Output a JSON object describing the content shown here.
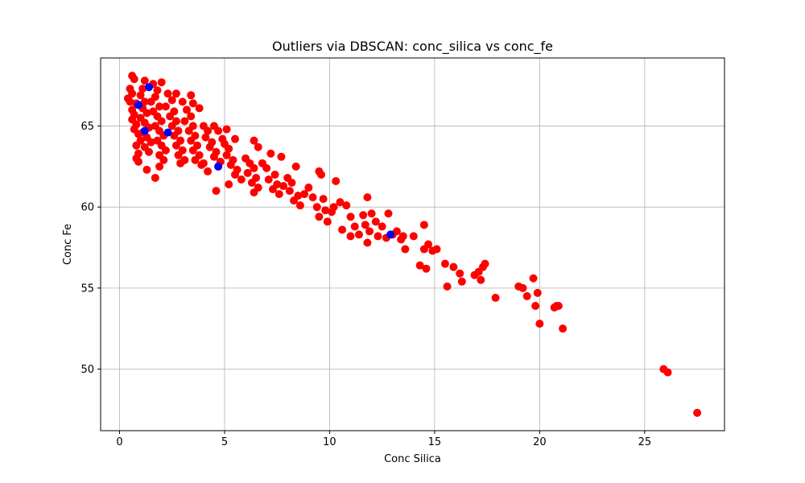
{
  "chart_data": {
    "type": "scatter",
    "title": "Outliers via DBSCAN: conc_silica vs conc_fe",
    "xlabel": "Conc Silica",
    "ylabel": "Conc Fe",
    "xlim": [
      -0.9,
      28.8
    ],
    "ylim": [
      46.2,
      69.2
    ],
    "xticks": [
      0,
      5,
      10,
      15,
      20,
      25
    ],
    "yticks": [
      50,
      55,
      60,
      65
    ],
    "xtick_labels": [
      "0",
      "5",
      "10",
      "15",
      "20",
      "25"
    ],
    "ytick_labels": [
      "50",
      "55",
      "60",
      "65"
    ],
    "grid": true,
    "series": [
      {
        "color": "#ff0000",
        "points": [
          [
            0.6,
            68.1
          ],
          [
            0.7,
            67.9
          ],
          [
            0.5,
            67.3
          ],
          [
            0.6,
            67.0
          ],
          [
            0.4,
            66.7
          ],
          [
            0.5,
            66.5
          ],
          [
            0.8,
            66.4
          ],
          [
            0.6,
            66.0
          ],
          [
            0.7,
            65.7
          ],
          [
            0.6,
            65.4
          ],
          [
            0.8,
            65.1
          ],
          [
            0.7,
            64.8
          ],
          [
            0.9,
            64.5
          ],
          [
            1.0,
            64.1
          ],
          [
            0.8,
            63.8
          ],
          [
            0.9,
            63.3
          ],
          [
            0.8,
            63.0
          ],
          [
            0.9,
            62.8
          ],
          [
            1.2,
            67.8
          ],
          [
            1.1,
            67.3
          ],
          [
            1.0,
            66.9
          ],
          [
            1.2,
            66.5
          ],
          [
            1.1,
            66.1
          ],
          [
            1.3,
            65.8
          ],
          [
            1.0,
            65.5
          ],
          [
            1.2,
            65.2
          ],
          [
            1.4,
            64.9
          ],
          [
            1.1,
            64.6
          ],
          [
            1.3,
            64.3
          ],
          [
            1.5,
            64.0
          ],
          [
            1.2,
            63.7
          ],
          [
            1.4,
            63.4
          ],
          [
            1.3,
            62.3
          ],
          [
            1.6,
            67.6
          ],
          [
            1.8,
            67.2
          ],
          [
            1.7,
            66.8
          ],
          [
            1.5,
            66.5
          ],
          [
            1.9,
            66.2
          ],
          [
            1.6,
            65.9
          ],
          [
            1.8,
            65.6
          ],
          [
            2.0,
            65.3
          ],
          [
            1.7,
            65.0
          ],
          [
            1.9,
            64.7
          ],
          [
            2.1,
            64.4
          ],
          [
            1.8,
            64.1
          ],
          [
            2.0,
            63.8
          ],
          [
            2.2,
            63.5
          ],
          [
            1.9,
            63.2
          ],
          [
            2.1,
            62.9
          ],
          [
            1.7,
            61.8
          ],
          [
            1.9,
            62.5
          ],
          [
            2.0,
            67.7
          ],
          [
            2.3,
            67.0
          ],
          [
            2.5,
            66.6
          ],
          [
            2.2,
            66.2
          ],
          [
            2.6,
            65.9
          ],
          [
            2.4,
            65.6
          ],
          [
            2.7,
            65.3
          ],
          [
            2.5,
            65.0
          ],
          [
            2.8,
            64.7
          ],
          [
            2.6,
            64.4
          ],
          [
            2.9,
            64.1
          ],
          [
            2.7,
            63.8
          ],
          [
            3.0,
            63.5
          ],
          [
            2.8,
            63.2
          ],
          [
            3.1,
            62.9
          ],
          [
            2.9,
            62.7
          ],
          [
            2.7,
            67.0
          ],
          [
            3.0,
            66.5
          ],
          [
            3.2,
            66.0
          ],
          [
            3.4,
            65.6
          ],
          [
            3.1,
            65.3
          ],
          [
            3.5,
            65.0
          ],
          [
            3.3,
            64.7
          ],
          [
            3.6,
            64.4
          ],
          [
            3.4,
            64.1
          ],
          [
            3.7,
            63.8
          ],
          [
            3.5,
            63.5
          ],
          [
            3.8,
            63.2
          ],
          [
            3.6,
            62.9
          ],
          [
            3.9,
            62.6
          ],
          [
            3.4,
            66.9
          ],
          [
            3.5,
            66.4
          ],
          [
            3.8,
            66.1
          ],
          [
            4.0,
            65.0
          ],
          [
            4.2,
            64.7
          ],
          [
            4.1,
            64.3
          ],
          [
            4.4,
            64.0
          ],
          [
            4.3,
            63.7
          ],
          [
            4.6,
            63.4
          ],
          [
            4.5,
            63.1
          ],
          [
            4.8,
            62.8
          ],
          [
            4.7,
            62.5
          ],
          [
            4.2,
            62.2
          ],
          [
            4.0,
            62.7
          ],
          [
            4.5,
            65.0
          ],
          [
            4.7,
            64.7
          ],
          [
            4.6,
            61.0
          ],
          [
            4.9,
            64.2
          ],
          [
            5.0,
            63.9
          ],
          [
            5.2,
            63.6
          ],
          [
            5.1,
            63.2
          ],
          [
            5.4,
            62.9
          ],
          [
            5.3,
            62.6
          ],
          [
            5.6,
            62.3
          ],
          [
            5.5,
            62.0
          ],
          [
            5.8,
            61.7
          ],
          [
            5.2,
            61.4
          ],
          [
            5.1,
            64.8
          ],
          [
            5.5,
            64.2
          ],
          [
            6.0,
            63.0
          ],
          [
            6.2,
            62.7
          ],
          [
            6.4,
            62.4
          ],
          [
            6.1,
            62.1
          ],
          [
            6.5,
            61.8
          ],
          [
            6.3,
            61.5
          ],
          [
            6.6,
            61.2
          ],
          [
            6.4,
            60.9
          ],
          [
            6.4,
            64.1
          ],
          [
            6.6,
            63.7
          ],
          [
            6.8,
            62.7
          ],
          [
            7.0,
            62.4
          ],
          [
            7.2,
            63.3
          ],
          [
            7.4,
            62.0
          ],
          [
            7.1,
            61.7
          ],
          [
            7.5,
            61.4
          ],
          [
            7.3,
            61.1
          ],
          [
            7.6,
            60.8
          ],
          [
            7.8,
            61.3
          ],
          [
            7.7,
            63.1
          ],
          [
            8.0,
            61.8
          ],
          [
            8.2,
            61.5
          ],
          [
            8.4,
            62.5
          ],
          [
            8.1,
            61.0
          ],
          [
            8.5,
            60.7
          ],
          [
            8.3,
            60.4
          ],
          [
            8.6,
            60.1
          ],
          [
            8.8,
            60.8
          ],
          [
            9.0,
            61.2
          ],
          [
            9.2,
            60.6
          ],
          [
            9.4,
            60.0
          ],
          [
            9.5,
            62.2
          ],
          [
            9.6,
            62.0
          ],
          [
            9.7,
            60.5
          ],
          [
            9.8,
            59.8
          ],
          [
            9.5,
            59.4
          ],
          [
            9.9,
            59.1
          ],
          [
            10.1,
            59.7
          ],
          [
            10.3,
            61.6
          ],
          [
            10.2,
            60.0
          ],
          [
            10.5,
            60.3
          ],
          [
            10.6,
            58.6
          ],
          [
            10.8,
            60.1
          ],
          [
            11.0,
            59.4
          ],
          [
            11.0,
            58.2
          ],
          [
            11.2,
            58.8
          ],
          [
            11.4,
            58.3
          ],
          [
            11.6,
            59.5
          ],
          [
            11.7,
            58.9
          ],
          [
            11.8,
            60.6
          ],
          [
            11.9,
            58.5
          ],
          [
            11.8,
            57.8
          ],
          [
            12.0,
            59.6
          ],
          [
            12.2,
            59.1
          ],
          [
            12.3,
            58.2
          ],
          [
            12.5,
            58.8
          ],
          [
            12.7,
            58.1
          ],
          [
            12.8,
            59.6
          ],
          [
            13.0,
            58.3
          ],
          [
            13.2,
            58.5
          ],
          [
            13.4,
            58.0
          ],
          [
            13.6,
            57.4
          ],
          [
            13.5,
            58.2
          ],
          [
            14.0,
            58.2
          ],
          [
            14.3,
            56.4
          ],
          [
            14.5,
            57.4
          ],
          [
            14.5,
            58.9
          ],
          [
            14.6,
            56.2
          ],
          [
            14.7,
            57.7
          ],
          [
            14.9,
            57.3
          ],
          [
            15.1,
            57.4
          ],
          [
            15.5,
            56.5
          ],
          [
            15.6,
            55.1
          ],
          [
            15.9,
            56.3
          ],
          [
            16.2,
            55.9
          ],
          [
            16.3,
            55.4
          ],
          [
            16.9,
            55.8
          ],
          [
            17.1,
            56.0
          ],
          [
            17.2,
            55.5
          ],
          [
            17.3,
            56.3
          ],
          [
            17.4,
            56.5
          ],
          [
            17.9,
            54.4
          ],
          [
            19.0,
            55.1
          ],
          [
            19.2,
            55.0
          ],
          [
            19.4,
            54.5
          ],
          [
            19.7,
            55.6
          ],
          [
            19.8,
            53.9
          ],
          [
            19.9,
            54.7
          ],
          [
            20.0,
            52.8
          ],
          [
            20.7,
            53.8
          ],
          [
            20.8,
            53.9
          ],
          [
            20.9,
            53.9
          ],
          [
            21.1,
            52.5
          ],
          [
            25.9,
            50.0
          ],
          [
            26.1,
            49.8
          ],
          [
            27.5,
            47.3
          ]
        ]
      },
      {
        "color": "#0000ff",
        "points": [
          [
            1.4,
            67.4
          ],
          [
            1.2,
            64.7
          ],
          [
            4.7,
            62.5
          ],
          [
            12.9,
            58.3
          ],
          [
            0.9,
            66.3
          ],
          [
            2.3,
            64.6
          ]
        ]
      }
    ]
  }
}
